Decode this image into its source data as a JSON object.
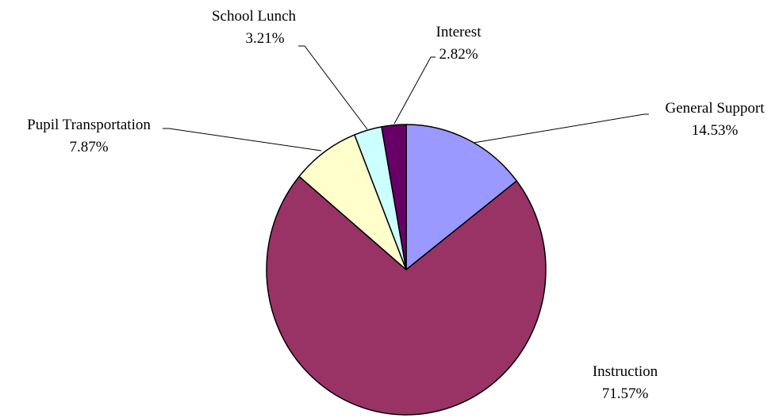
{
  "chart_data": {
    "type": "pie",
    "title": "",
    "start_angle_deg": 0,
    "direction": "clockwise",
    "slices": [
      {
        "label": "General Support",
        "value": 14.53,
        "value_label": "14.53%",
        "color": "#9999FF"
      },
      {
        "label": "Instruction",
        "value": 71.57,
        "value_label": "71.57%",
        "color": "#993366"
      },
      {
        "label": "Pupil Transportation",
        "value": 7.87,
        "value_label": "7.87%",
        "color": "#FFFFCC"
      },
      {
        "label": "School Lunch",
        "value": 3.21,
        "value_label": "3.21%",
        "color": "#CCFFFF"
      },
      {
        "label": "Interest",
        "value": 2.82,
        "value_label": "2.82%",
        "color": "#660066"
      }
    ]
  }
}
